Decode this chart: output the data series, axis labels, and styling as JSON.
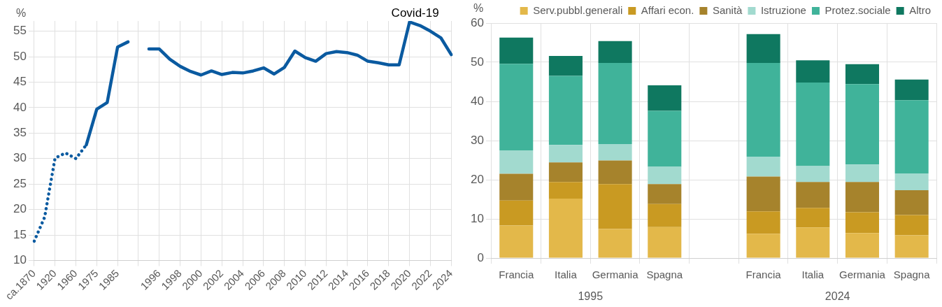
{
  "chart_data": [
    {
      "type": "line",
      "ylabel": "%",
      "categories": [
        "ca.1870",
        null,
        "1920",
        null,
        "1960",
        null,
        "1975",
        null,
        "1985",
        null,
        null,
        null,
        "1996",
        null,
        "1998",
        null,
        "2000",
        null,
        "2002",
        null,
        "2004",
        null,
        "2006",
        null,
        "2008",
        null,
        "2010",
        null,
        "2012",
        null,
        "2014",
        null,
        "2016",
        null,
        "2018",
        null,
        "2020",
        null,
        "2022",
        null,
        "2024"
      ],
      "series": [
        {
          "color": "#0a5aa0",
          "line_style": "dotted",
          "values": [
            13.8,
            18.5,
            30.1,
            31.1,
            30.0,
            32.7,
            null,
            null,
            null,
            null,
            null,
            null,
            null,
            null,
            null,
            null,
            null,
            null,
            null,
            null,
            null,
            null,
            null,
            null,
            null,
            null,
            null,
            null,
            null,
            null,
            null,
            null,
            null,
            null,
            null,
            null,
            null,
            null,
            null,
            null,
            null
          ]
        },
        {
          "color": "#0a5aa0",
          "line_style": "solid",
          "values": [
            null,
            null,
            null,
            null,
            null,
            32.7,
            39.7,
            41.0,
            51.9,
            52.9,
            null,
            51.5,
            51.5,
            49.5,
            48.1,
            47.1,
            46.4,
            47.2,
            46.5,
            46.9,
            46.8,
            47.2,
            47.8,
            46.6,
            47.9,
            51.1,
            49.8,
            49.1,
            50.6,
            51.0,
            50.8,
            50.3,
            49.1,
            48.8,
            48.4,
            48.4,
            56.8,
            56.1,
            55.0,
            53.7,
            50.4
          ]
        }
      ],
      "ylim": [
        10,
        57
      ],
      "yticks": [
        10,
        15,
        20,
        25,
        30,
        35,
        40,
        45,
        50,
        55
      ],
      "grid": true,
      "legend": false,
      "marker": "none",
      "annotations": [
        {
          "text": "Covid-19",
          "x": "2020",
          "y": 56.8
        }
      ]
    },
    {
      "type": "bar",
      "stacked": true,
      "ylabel": "%",
      "categories": [
        "Francia",
        "Italia",
        "Germania",
        "Spagna",
        null,
        "Francia",
        "Italia",
        "Germania",
        "Spagna"
      ],
      "series": [
        {
          "name": "Serv.pubbl.generali",
          "color": "#e3b84a",
          "values": [
            8.3,
            15.2,
            7.4,
            7.9,
            null,
            6.2,
            7.8,
            6.4,
            5.8
          ]
        },
        {
          "name": "Affari econ.",
          "color": "#c99a22",
          "values": [
            6.4,
            4.2,
            11.5,
            5.9,
            null,
            5.7,
            5.0,
            5.3,
            5.2
          ]
        },
        {
          "name": "Sanità",
          "color": "#a6832c",
          "values": [
            6.8,
            5.0,
            6.0,
            5.1,
            null,
            8.9,
            6.6,
            7.7,
            6.3
          ]
        },
        {
          "name": "Istruzione",
          "color": "#a2dacf",
          "values": [
            6.0,
            4.5,
            4.2,
            4.4,
            null,
            5.1,
            4.1,
            4.5,
            4.3
          ]
        },
        {
          "name": "Protez.sociale",
          "color": "#40b39a",
          "values": [
            22.1,
            17.6,
            20.7,
            14.3,
            null,
            23.9,
            21.3,
            20.5,
            18.7
          ]
        },
        {
          "name": "Altro",
          "color": "#0f7860",
          "values": [
            6.7,
            5.1,
            5.6,
            6.5,
            null,
            7.4,
            5.7,
            5.1,
            5.3
          ]
        }
      ],
      "ylim": [
        0,
        60
      ],
      "yticks": [
        0,
        10,
        20,
        30,
        40,
        50,
        60
      ],
      "grid": true,
      "legend": "top right",
      "annotations": [
        "1995",
        "2024"
      ]
    }
  ]
}
